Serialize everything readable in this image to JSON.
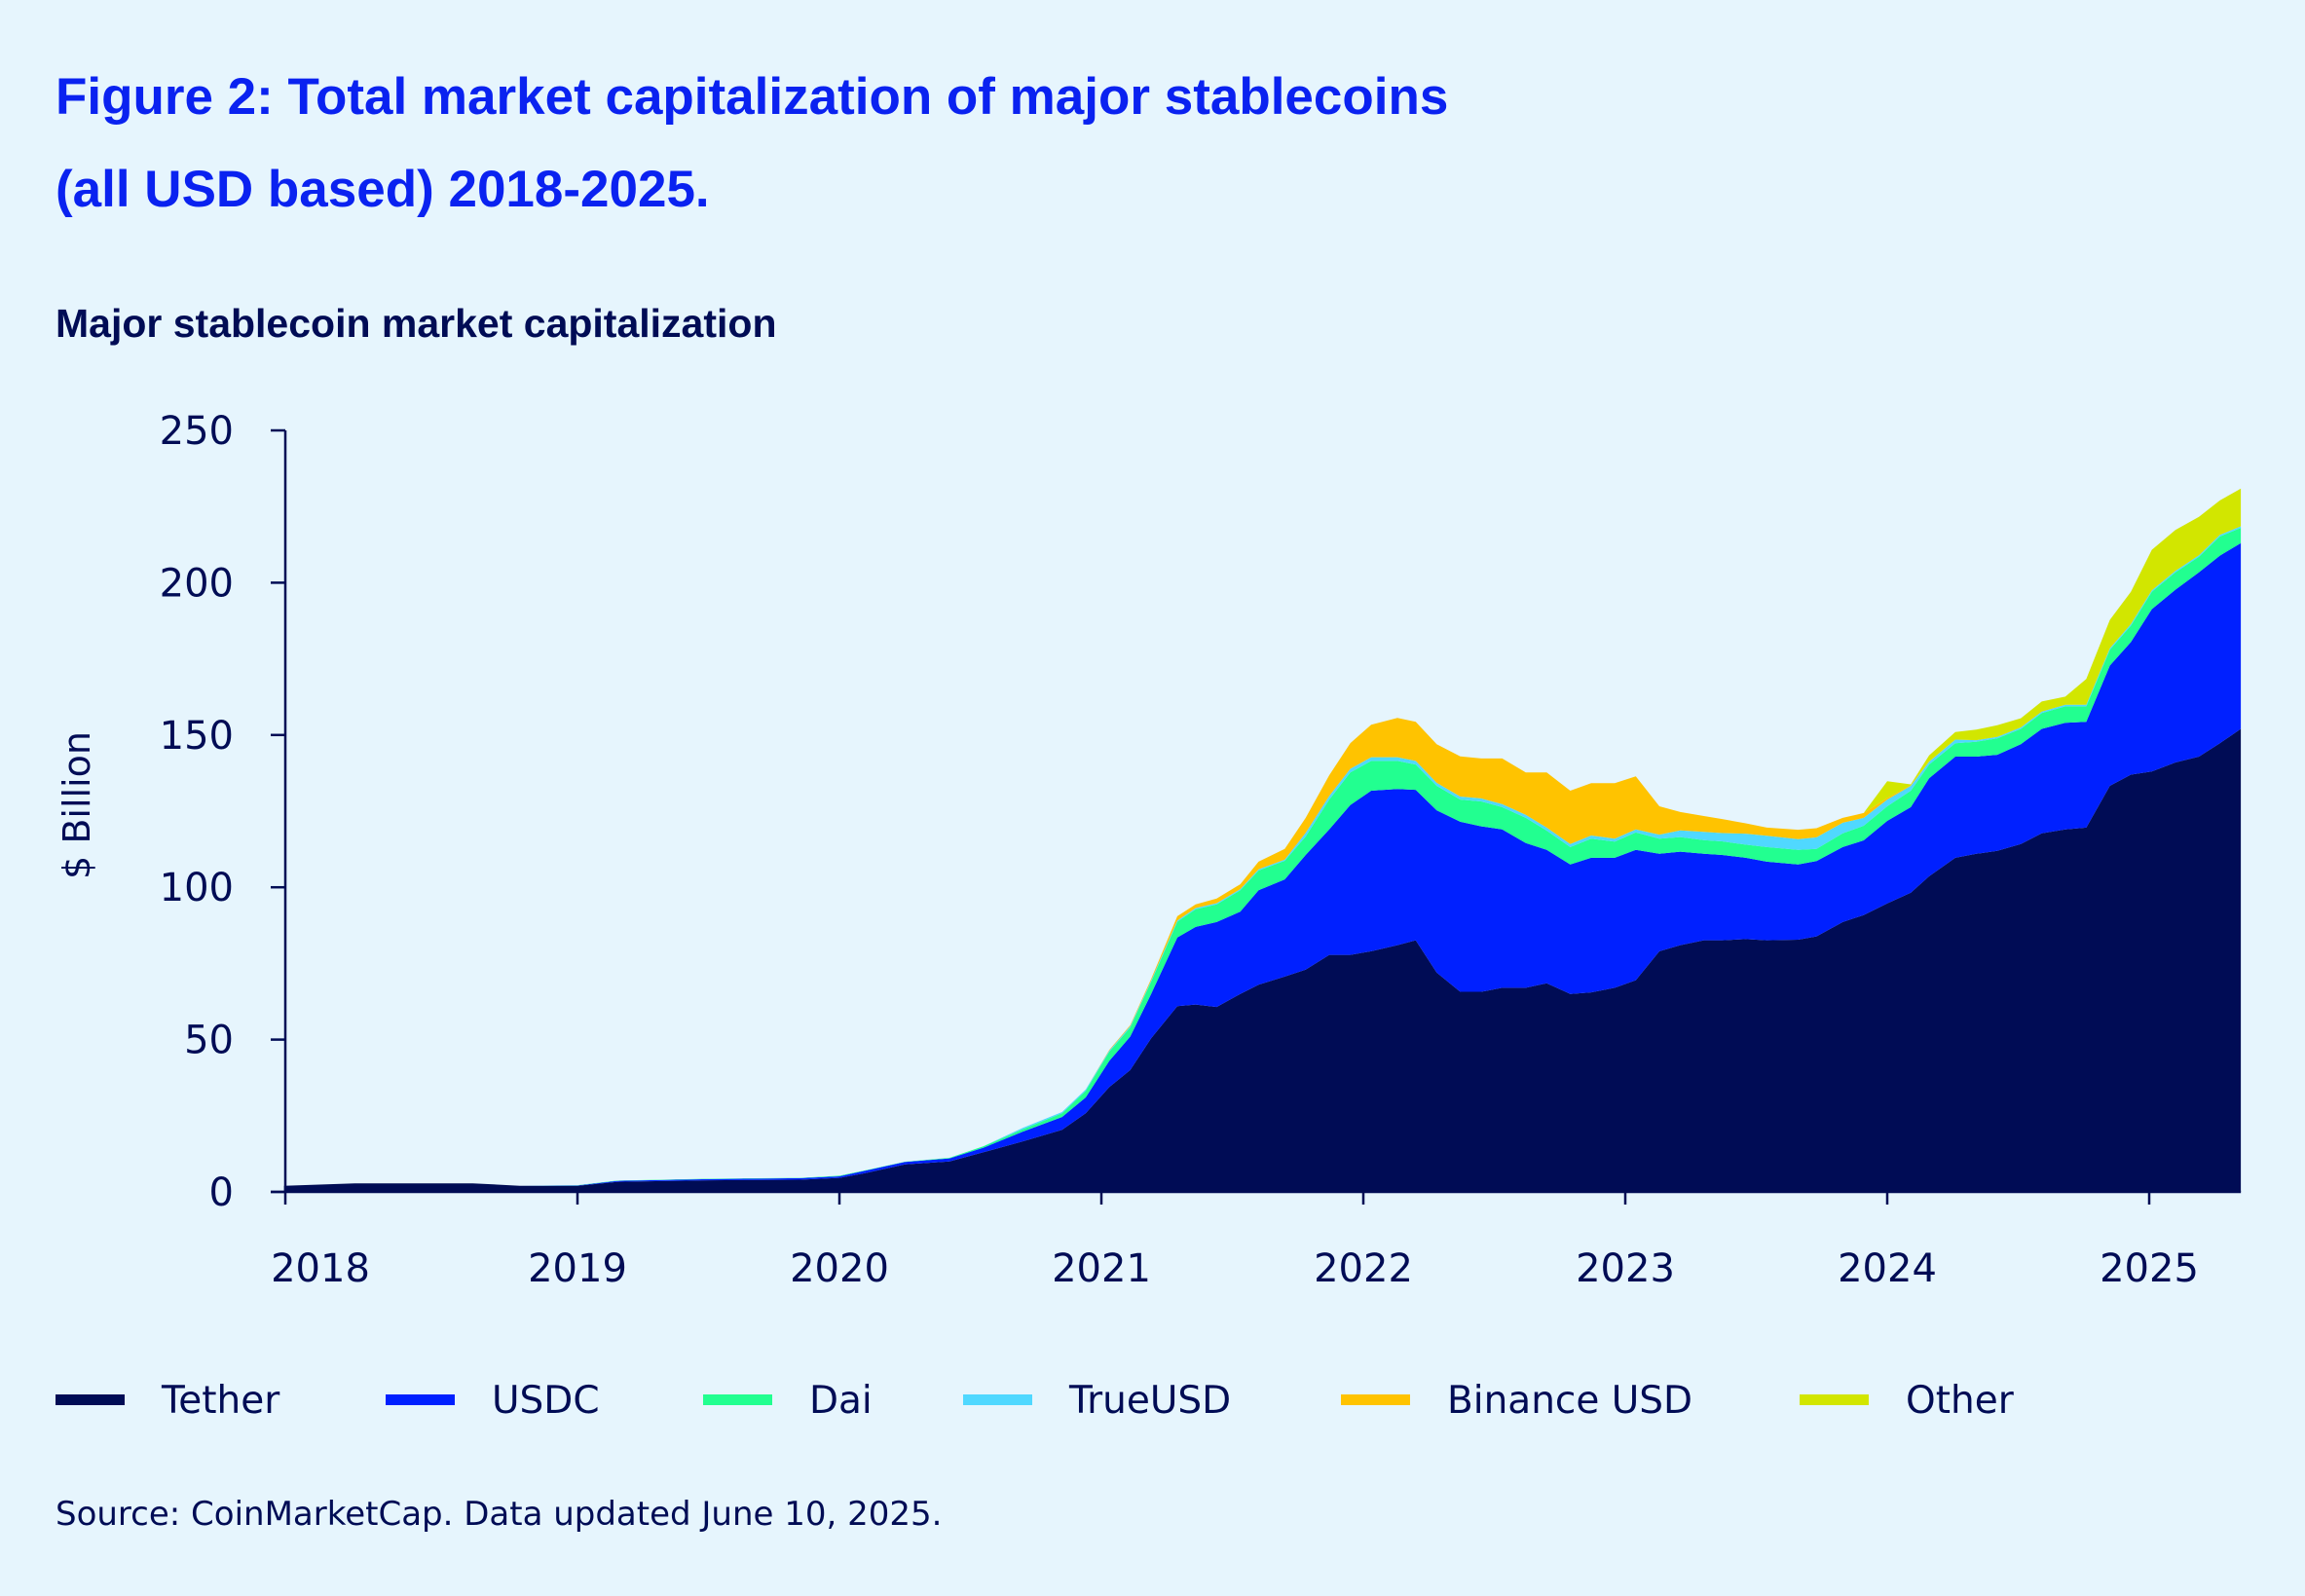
{
  "title_line1": "Figure 2: Total market capitalization of major stablecoins",
  "title_line2": "(all USD based) 2018-2025.",
  "source": "Source: CoinMarketCap. Data updated June 10, 2025.",
  "chart_data": {
    "type": "area",
    "stacked": true,
    "title": "Major stablecoin market capitalization",
    "xlabel": "",
    "ylabel": "$ Billion",
    "ylim": [
      0,
      250
    ],
    "xlim": [
      2017.88,
      2025.35
    ],
    "yticks": [
      0,
      50,
      100,
      150,
      200,
      250
    ],
    "xticks": [
      2018,
      2019,
      2020,
      2021,
      2022,
      2023,
      2024,
      2025
    ],
    "xtick_labels": [
      "2018",
      "2019",
      "2020",
      "2021",
      "2022",
      "2023",
      "2024",
      "2025"
    ],
    "grid": false,
    "legend_position": "bottom",
    "x": [
      2017.88,
      2018.15,
      2018.6,
      2018.78,
      2019.0,
      2019.15,
      2019.5,
      2019.85,
      2020.0,
      2020.1,
      2020.25,
      2020.42,
      2020.55,
      2020.7,
      2020.85,
      2020.94,
      2021.03,
      2021.11,
      2021.19,
      2021.29,
      2021.36,
      2021.44,
      2021.53,
      2021.6,
      2021.7,
      2021.78,
      2021.87,
      2021.95,
      2022.03,
      2022.13,
      2022.2,
      2022.28,
      2022.37,
      2022.45,
      2022.53,
      2022.62,
      2022.7,
      2022.79,
      2022.87,
      2022.96,
      2023.04,
      2023.13,
      2023.21,
      2023.3,
      2023.37,
      2023.46,
      2023.54,
      2023.66,
      2023.73,
      2023.83,
      2023.91,
      2024.0,
      2024.09,
      2024.16,
      2024.26,
      2024.34,
      2024.42,
      2024.51,
      2024.59,
      2024.68,
      2024.76,
      2024.85,
      2024.93,
      2025.01,
      2025.1,
      2025.19,
      2025.27,
      2025.35
    ],
    "series": [
      {
        "name": "Tether",
        "color": "#000c55",
        "values": [
          2.0,
          2.8,
          2.8,
          2.0,
          2.0,
          3.3,
          3.8,
          4.0,
          4.6,
          6.2,
          9.0,
          10,
          13,
          16.6,
          20.4,
          25.8,
          34.4,
          40,
          50.4,
          61,
          61.5,
          60.7,
          65,
          68,
          70.7,
          73,
          77.8,
          77.8,
          79,
          81,
          82.6,
          72,
          65.7,
          65.7,
          67,
          67,
          68.5,
          65,
          65.5,
          67,
          69.5,
          79,
          81,
          82.6,
          82.6,
          83,
          82.6,
          82.8,
          83.9,
          88.6,
          90.9,
          94.7,
          98.2,
          103.6,
          109.7,
          111,
          112,
          114.2,
          117.7,
          119,
          119.6,
          133.3,
          137,
          138,
          141,
          142.9,
          147.3,
          152
        ]
      },
      {
        "name": "USDC",
        "color": "#0020ff",
        "values": [
          0,
          0,
          0,
          0,
          0.1,
          0.3,
          0.4,
          0.5,
          0.5,
          0.8,
          0.8,
          1.0,
          1.5,
          3.2,
          4.2,
          5.2,
          8.6,
          11,
          14.6,
          22.5,
          25.5,
          27.9,
          27,
          31,
          31.9,
          37.6,
          41.2,
          49.2,
          52.7,
          51.3,
          49.4,
          53.3,
          55.8,
          54.3,
          52,
          47.5,
          43.8,
          42.5,
          44.2,
          42.7,
          42.8,
          32,
          30.7,
          28.4,
          28,
          26.7,
          25.8,
          24.7,
          24.7,
          24.6,
          24.5,
          27.1,
          28.1,
          32.2,
          33.2,
          31.9,
          31.5,
          32.8,
          34.3,
          35,
          34.7,
          39.5,
          43.5,
          53.3,
          56.7,
          60.5,
          61.6,
          61
        ]
      },
      {
        "name": "Dai",
        "color": "#22ff90",
        "values": [
          0,
          0,
          0,
          0,
          0.1,
          0.1,
          0.1,
          0.1,
          0.2,
          0.1,
          0.1,
          0.2,
          0.5,
          0.8,
          1.2,
          2.2,
          3,
          3,
          4,
          5.2,
          5.8,
          5.8,
          7,
          6.5,
          6.1,
          6.1,
          9.8,
          10.7,
          9.8,
          9.2,
          8.3,
          8,
          7.3,
          8.2,
          7.3,
          8.3,
          6.3,
          5.7,
          6.3,
          5.3,
          5.7,
          5,
          4.8,
          4.5,
          4.5,
          4.3,
          4.8,
          4.8,
          4,
          4.5,
          4.8,
          4.8,
          5.4,
          4.5,
          4.4,
          4.9,
          5.4,
          5,
          5.2,
          5.4,
          5.1,
          5.2,
          5.4,
          5.7,
          5.7,
          5.1,
          6.3,
          5
        ]
      },
      {
        "name": "TrueUSD",
        "color": "#50d8ff",
        "values": [
          0,
          0,
          0,
          0,
          0,
          0,
          0,
          0,
          0,
          0,
          0,
          0,
          0,
          0.4,
          0.4,
          0.4,
          0.4,
          0.4,
          0.4,
          0.4,
          0.4,
          0.4,
          0.4,
          0.4,
          0.4,
          1.2,
          1.2,
          1.2,
          1.2,
          1.2,
          1.2,
          1.0,
          1.0,
          1.0,
          1.0,
          1.0,
          1.0,
          1.0,
          1.0,
          1.0,
          1.0,
          1.3,
          2.2,
          2.7,
          2.7,
          3.6,
          3.7,
          3.5,
          3.8,
          3.5,
          2.6,
          2.2,
          1.6,
          0.9,
          1.2,
          0.5,
          0.5,
          0.5,
          0.5,
          0.5,
          0.5,
          0.5,
          0.5,
          0.5,
          0.5,
          0.5,
          0.5,
          0.5
        ]
      },
      {
        "name": "Binance USD",
        "color": "#ffc300",
        "values": [
          0,
          0,
          0,
          0,
          0,
          0,
          0,
          0,
          0,
          0,
          0,
          0,
          0,
          0,
          0,
          0,
          0.2,
          0.3,
          0.5,
          1.4,
          1.2,
          1.5,
          1.6,
          2.5,
          3.5,
          4.9,
          6.8,
          8.4,
          10.7,
          12.9,
          12.8,
          12.7,
          13.2,
          13.1,
          15,
          13.9,
          18.1,
          17.5,
          17.2,
          18.2,
          17.4,
          9.3,
          6,
          5.2,
          4.6,
          3.4,
          2.7,
          3.1,
          3,
          1.6,
          1.6,
          0.5,
          0.2,
          0.1,
          0,
          0,
          0,
          0,
          0,
          0,
          0,
          0,
          0,
          0,
          0,
          0,
          0,
          0
        ]
      },
      {
        "name": "Other",
        "color": "#d2e600",
        "values": [
          0,
          0,
          0,
          0,
          0,
          0,
          0,
          0,
          0,
          0,
          0,
          0,
          0,
          0,
          0,
          0,
          0,
          0,
          0,
          0,
          0,
          0,
          0,
          0,
          0,
          0,
          0,
          0,
          0,
          0,
          0,
          0,
          0,
          0,
          0,
          0,
          0,
          0,
          0,
          0,
          0,
          0,
          0,
          0,
          0,
          0,
          0,
          0,
          0,
          0,
          0,
          5.5,
          0.3,
          2,
          2.5,
          3.5,
          3.8,
          3,
          3.3,
          2.7,
          8.5,
          9.3,
          10.6,
          13.3,
          13.4,
          12.6,
          11.3,
          12.4
        ]
      }
    ]
  }
}
